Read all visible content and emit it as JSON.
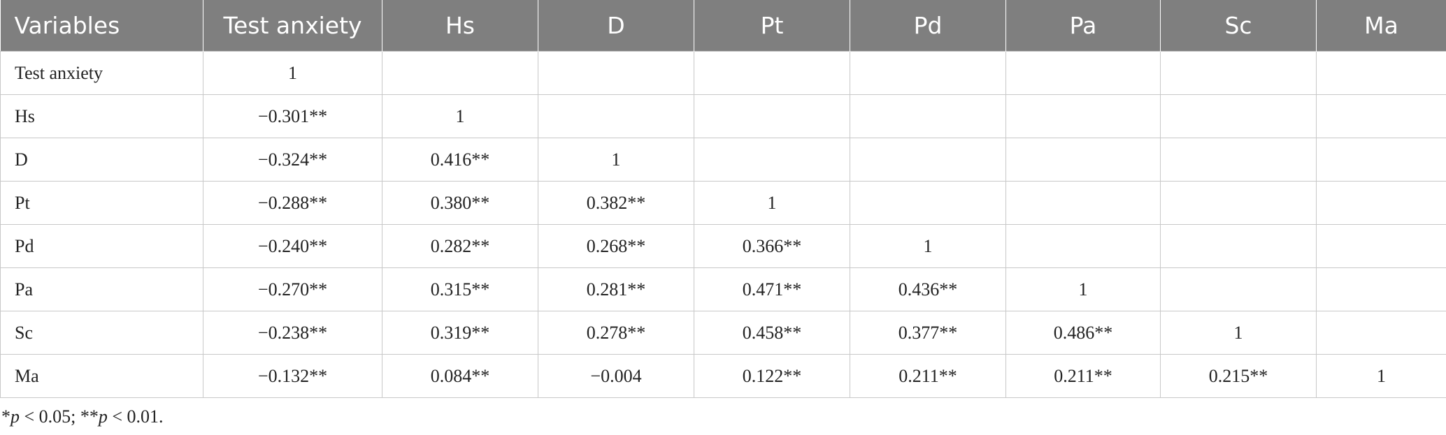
{
  "table": {
    "header": [
      "Variables",
      "Test anxiety",
      "Hs",
      "D",
      "Pt",
      "Pd",
      "Pa",
      "Sc",
      "Ma"
    ],
    "rows": [
      {
        "label": "Test anxiety",
        "values": [
          "1"
        ]
      },
      {
        "label": "Hs",
        "values": [
          "−0.301**",
          "1"
        ]
      },
      {
        "label": "D",
        "values": [
          "−0.324**",
          "0.416**",
          "1"
        ]
      },
      {
        "label": "Pt",
        "values": [
          "−0.288**",
          "0.380**",
          "0.382**",
          "1"
        ]
      },
      {
        "label": "Pd",
        "values": [
          "−0.240**",
          "0.282**",
          "0.268**",
          "0.366**",
          "1"
        ]
      },
      {
        "label": "Pa",
        "values": [
          "−0.270**",
          "0.315**",
          "0.281**",
          "0.471**",
          "0.436**",
          "1"
        ]
      },
      {
        "label": "Sc",
        "values": [
          "−0.238**",
          "0.319**",
          "0.278**",
          "0.458**",
          "0.377**",
          "0.486**",
          "1"
        ]
      },
      {
        "label": "Ma",
        "values": [
          "−0.132**",
          "0.084**",
          "−0.004",
          "0.122**",
          "0.211**",
          "0.211**",
          "0.215**",
          "1"
        ]
      }
    ]
  },
  "footnote": [
    "*",
    "p",
    " < 0.05; **",
    "p",
    " < 0.01."
  ]
}
